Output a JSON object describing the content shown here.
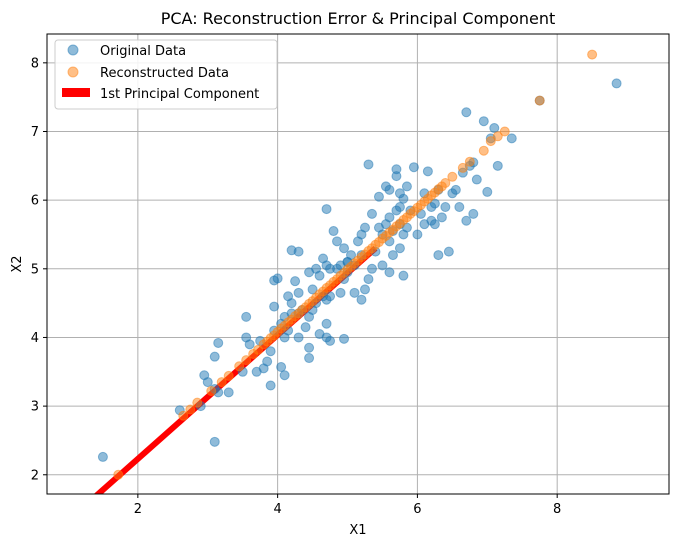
{
  "chart_data": {
    "type": "scatter",
    "title": "PCA: Reconstruction Error & Principal Component",
    "xlabel": "X1",
    "ylabel": "X2",
    "xlim": [
      0.7,
      9.6
    ],
    "ylim": [
      1.72,
      8.42
    ],
    "xticks": [
      2,
      4,
      6,
      8
    ],
    "yticks": [
      2,
      3,
      4,
      5,
      6,
      7,
      8
    ],
    "grid": true,
    "legend_position": "top-left",
    "colors": {
      "original": "#1f77b4",
      "reconstructed": "#ff7f0e",
      "component": "#ff0000",
      "grid": "#b0b0b0"
    },
    "legend": [
      {
        "label": "Original Data",
        "kind": "original"
      },
      {
        "label": "Reconstructed Data",
        "kind": "reconstructed"
      },
      {
        "label": "1st Principal Component",
        "kind": "component"
      }
    ],
    "principal_component": {
      "x": [
        1.3,
        5.4
      ],
      "y": [
        1.6,
        5.3
      ]
    },
    "series": [
      {
        "name": "Original Data",
        "points": [
          [
            1.5,
            2.26
          ],
          [
            2.6,
            2.94
          ],
          [
            2.9,
            3.0
          ],
          [
            3.1,
            2.48
          ],
          [
            2.95,
            3.45
          ],
          [
            3.0,
            3.35
          ],
          [
            3.1,
            3.25
          ],
          [
            3.15,
            3.2
          ],
          [
            3.3,
            3.2
          ],
          [
            3.1,
            3.72
          ],
          [
            3.15,
            3.92
          ],
          [
            3.5,
            3.5
          ],
          [
            3.55,
            4.0
          ],
          [
            3.6,
            3.9
          ],
          [
            3.55,
            4.3
          ],
          [
            3.7,
            3.5
          ],
          [
            3.75,
            3.95
          ],
          [
            3.8,
            3.55
          ],
          [
            3.85,
            3.65
          ],
          [
            3.9,
            3.3
          ],
          [
            3.9,
            3.8
          ],
          [
            3.95,
            4.1
          ],
          [
            3.95,
            4.45
          ],
          [
            3.95,
            4.83
          ],
          [
            4.0,
            4.86
          ],
          [
            4.05,
            3.57
          ],
          [
            4.05,
            4.2
          ],
          [
            4.1,
            3.45
          ],
          [
            4.1,
            4.0
          ],
          [
            4.1,
            4.3
          ],
          [
            4.15,
            4.1
          ],
          [
            4.15,
            4.6
          ],
          [
            4.2,
            4.5
          ],
          [
            4.2,
            4.35
          ],
          [
            4.2,
            5.27
          ],
          [
            4.25,
            4.82
          ],
          [
            4.3,
            4.0
          ],
          [
            4.3,
            4.35
          ],
          [
            4.3,
            4.65
          ],
          [
            4.3,
            5.25
          ],
          [
            4.35,
            4.4
          ],
          [
            4.4,
            4.15
          ],
          [
            4.45,
            3.85
          ],
          [
            4.45,
            3.7
          ],
          [
            4.45,
            4.3
          ],
          [
            4.45,
            4.95
          ],
          [
            4.5,
            4.4
          ],
          [
            4.5,
            4.7
          ],
          [
            4.55,
            5.0
          ],
          [
            4.55,
            4.5
          ],
          [
            4.6,
            4.05
          ],
          [
            4.6,
            4.9
          ],
          [
            4.65,
            5.15
          ],
          [
            4.65,
            4.6
          ],
          [
            4.7,
            4.0
          ],
          [
            4.7,
            4.2
          ],
          [
            4.7,
            4.55
          ],
          [
            4.7,
            5.05
          ],
          [
            4.7,
            5.87
          ],
          [
            4.75,
            3.95
          ],
          [
            4.75,
            4.6
          ],
          [
            4.75,
            5.0
          ],
          [
            4.8,
            5.55
          ],
          [
            4.85,
            5.0
          ],
          [
            4.85,
            5.4
          ],
          [
            4.9,
            4.65
          ],
          [
            4.9,
            5.05
          ],
          [
            4.95,
            3.98
          ],
          [
            4.95,
            4.85
          ],
          [
            4.95,
            5.3
          ],
          [
            5.0,
            5.1
          ],
          [
            5.0,
            5.1
          ],
          [
            5.0,
            4.95
          ],
          [
            5.05,
            5.2
          ],
          [
            5.1,
            4.65
          ],
          [
            5.1,
            5.05
          ],
          [
            5.15,
            5.4
          ],
          [
            5.2,
            4.55
          ],
          [
            5.2,
            5.2
          ],
          [
            5.2,
            5.5
          ],
          [
            5.25,
            4.7
          ],
          [
            5.25,
            5.6
          ],
          [
            5.3,
            6.52
          ],
          [
            5.3,
            4.85
          ],
          [
            5.35,
            5.0
          ],
          [
            5.35,
            5.8
          ],
          [
            5.4,
            5.25
          ],
          [
            5.45,
            6.05
          ],
          [
            5.45,
            5.6
          ],
          [
            5.5,
            5.05
          ],
          [
            5.5,
            5.5
          ],
          [
            5.55,
            5.65
          ],
          [
            5.55,
            6.2
          ],
          [
            5.6,
            4.95
          ],
          [
            5.6,
            5.4
          ],
          [
            5.6,
            5.75
          ],
          [
            5.6,
            6.15
          ],
          [
            5.65,
            5.2
          ],
          [
            5.65,
            5.55
          ],
          [
            5.7,
            5.85
          ],
          [
            5.7,
            6.35
          ],
          [
            5.7,
            6.45
          ],
          [
            5.75,
            5.3
          ],
          [
            5.75,
            5.65
          ],
          [
            5.75,
            5.9
          ],
          [
            5.75,
            6.1
          ],
          [
            5.8,
            4.9
          ],
          [
            5.8,
            5.5
          ],
          [
            5.8,
            6.02
          ],
          [
            5.85,
            5.6
          ],
          [
            5.85,
            6.2
          ],
          [
            5.9,
            5.85
          ],
          [
            5.95,
            6.48
          ],
          [
            6.0,
            5.5
          ],
          [
            6.05,
            5.8
          ],
          [
            6.1,
            5.65
          ],
          [
            6.1,
            6.1
          ],
          [
            6.15,
            6.42
          ],
          [
            6.2,
            5.7
          ],
          [
            6.2,
            5.9
          ],
          [
            6.25,
            5.65
          ],
          [
            6.25,
            5.95
          ],
          [
            6.3,
            6.15
          ],
          [
            6.3,
            5.2
          ],
          [
            6.35,
            5.75
          ],
          [
            6.4,
            5.9
          ],
          [
            6.45,
            5.25
          ],
          [
            6.5,
            6.1
          ],
          [
            6.55,
            6.15
          ],
          [
            6.6,
            5.9
          ],
          [
            6.65,
            6.4
          ],
          [
            6.7,
            7.28
          ],
          [
            6.7,
            5.7
          ],
          [
            6.75,
            6.5
          ],
          [
            6.8,
            6.55
          ],
          [
            6.8,
            5.8
          ],
          [
            6.85,
            6.3
          ],
          [
            6.95,
            7.15
          ],
          [
            7.0,
            6.12
          ],
          [
            7.05,
            6.9
          ],
          [
            7.1,
            7.05
          ],
          [
            7.15,
            6.5
          ],
          [
            7.35,
            6.9
          ],
          [
            7.75,
            7.45
          ],
          [
            8.85,
            7.7
          ]
        ]
      },
      {
        "name": "Reconstructed Data",
        "points": [
          [
            1.72,
            2.0
          ],
          [
            2.65,
            2.86
          ],
          [
            2.75,
            2.95
          ],
          [
            2.85,
            3.05
          ],
          [
            3.05,
            3.22
          ],
          [
            3.2,
            3.35
          ],
          [
            3.3,
            3.44
          ],
          [
            3.45,
            3.58
          ],
          [
            3.55,
            3.67
          ],
          [
            3.65,
            3.76
          ],
          [
            3.72,
            3.82
          ],
          [
            3.8,
            3.9
          ],
          [
            3.85,
            3.94
          ],
          [
            3.9,
            3.99
          ],
          [
            3.95,
            4.03
          ],
          [
            4.0,
            4.08
          ],
          [
            4.05,
            4.13
          ],
          [
            4.1,
            4.17
          ],
          [
            4.15,
            4.22
          ],
          [
            4.2,
            4.26
          ],
          [
            4.25,
            4.31
          ],
          [
            4.3,
            4.35
          ],
          [
            4.35,
            4.4
          ],
          [
            4.4,
            4.44
          ],
          [
            4.45,
            4.49
          ],
          [
            4.5,
            4.53
          ],
          [
            4.55,
            4.58
          ],
          [
            4.6,
            4.63
          ],
          [
            4.65,
            4.67
          ],
          [
            4.7,
            4.72
          ],
          [
            4.75,
            4.76
          ],
          [
            4.8,
            4.81
          ],
          [
            4.85,
            4.85
          ],
          [
            4.9,
            4.9
          ],
          [
            4.95,
            4.94
          ],
          [
            5.0,
            4.99
          ],
          [
            5.05,
            5.03
          ],
          [
            5.1,
            5.08
          ],
          [
            5.15,
            5.12
          ],
          [
            5.2,
            5.17
          ],
          [
            5.25,
            5.21
          ],
          [
            5.3,
            5.26
          ],
          [
            5.35,
            5.3
          ],
          [
            5.4,
            5.35
          ],
          [
            5.45,
            5.39
          ],
          [
            5.5,
            5.44
          ],
          [
            5.55,
            5.48
          ],
          [
            5.6,
            5.53
          ],
          [
            5.65,
            5.57
          ],
          [
            5.7,
            5.62
          ],
          [
            5.75,
            5.66
          ],
          [
            5.8,
            5.71
          ],
          [
            5.85,
            5.75
          ],
          [
            5.9,
            5.8
          ],
          [
            5.95,
            5.84
          ],
          [
            6.0,
            5.89
          ],
          [
            6.05,
            5.93
          ],
          [
            6.1,
            5.98
          ],
          [
            6.15,
            6.02
          ],
          [
            6.2,
            6.07
          ],
          [
            6.25,
            6.11
          ],
          [
            6.3,
            6.16
          ],
          [
            6.35,
            6.2
          ],
          [
            6.4,
            6.25
          ],
          [
            6.5,
            6.34
          ],
          [
            6.65,
            6.47
          ],
          [
            6.75,
            6.56
          ],
          [
            6.95,
            6.72
          ],
          [
            7.05,
            6.86
          ],
          [
            7.15,
            6.93
          ],
          [
            7.25,
            7.0
          ],
          [
            7.75,
            7.45
          ],
          [
            8.5,
            8.12
          ]
        ]
      }
    ]
  }
}
